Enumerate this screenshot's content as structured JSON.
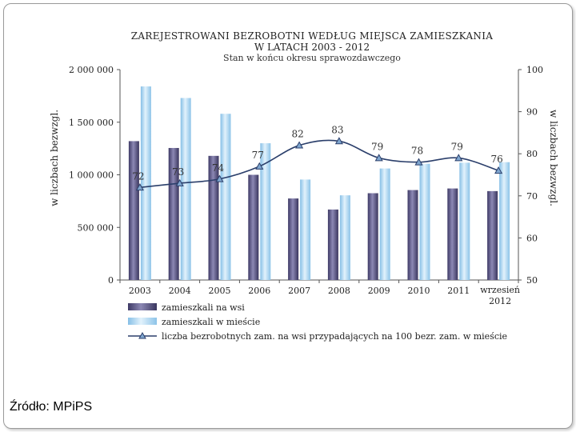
{
  "source": "Źródło: MPiPS",
  "chart_data": {
    "type": "bar",
    "title": "ZAREJESTROWANI BEZROBOTNI WEDŁUG MIEJSCA ZAMIESZKANIA",
    "title_line2": "W LATACH 2003 - 2012",
    "subtitle": "Stan w końcu okresu sprawozdawczego",
    "ylabel_left": "w liczbach bezwzgl.",
    "ylabel_right": "w liczbach bezwzgl.",
    "ylim_left": [
      0,
      2000000
    ],
    "ylim_right": [
      50,
      100
    ],
    "yticks_left": [
      "0",
      "500 000",
      "1 000 000",
      "1 500 000",
      "2 000 000"
    ],
    "yticks_right": [
      "50",
      "60",
      "70",
      "80",
      "90",
      "100"
    ],
    "categories": [
      "2003",
      "2004",
      "2005",
      "2006",
      "2007",
      "2008",
      "2009",
      "2010",
      "2011",
      "wrzesień 2012"
    ],
    "series": [
      {
        "name": "zamieszkali na wsi",
        "type": "bar",
        "axis": "left",
        "color": "#5e5a86",
        "values": [
          1320000,
          1255000,
          1180000,
          1000000,
          775000,
          670000,
          825000,
          855000,
          870000,
          845000
        ]
      },
      {
        "name": "zamieszkali w mieście",
        "type": "bar",
        "axis": "left",
        "color": "#a9d4f0",
        "values": [
          1840000,
          1730000,
          1580000,
          1300000,
          955000,
          805000,
          1060000,
          1105000,
          1115000,
          1120000
        ]
      },
      {
        "name": "liczba bezrobotnych zam. na wsi przypadających na 100 bezr. zam. w mieście",
        "type": "line",
        "axis": "right",
        "color": "#2b3f6b",
        "values": [
          72,
          73,
          74,
          77,
          82,
          83,
          79,
          78,
          79,
          76
        ]
      }
    ],
    "grid": false,
    "legend": "bottom"
  }
}
